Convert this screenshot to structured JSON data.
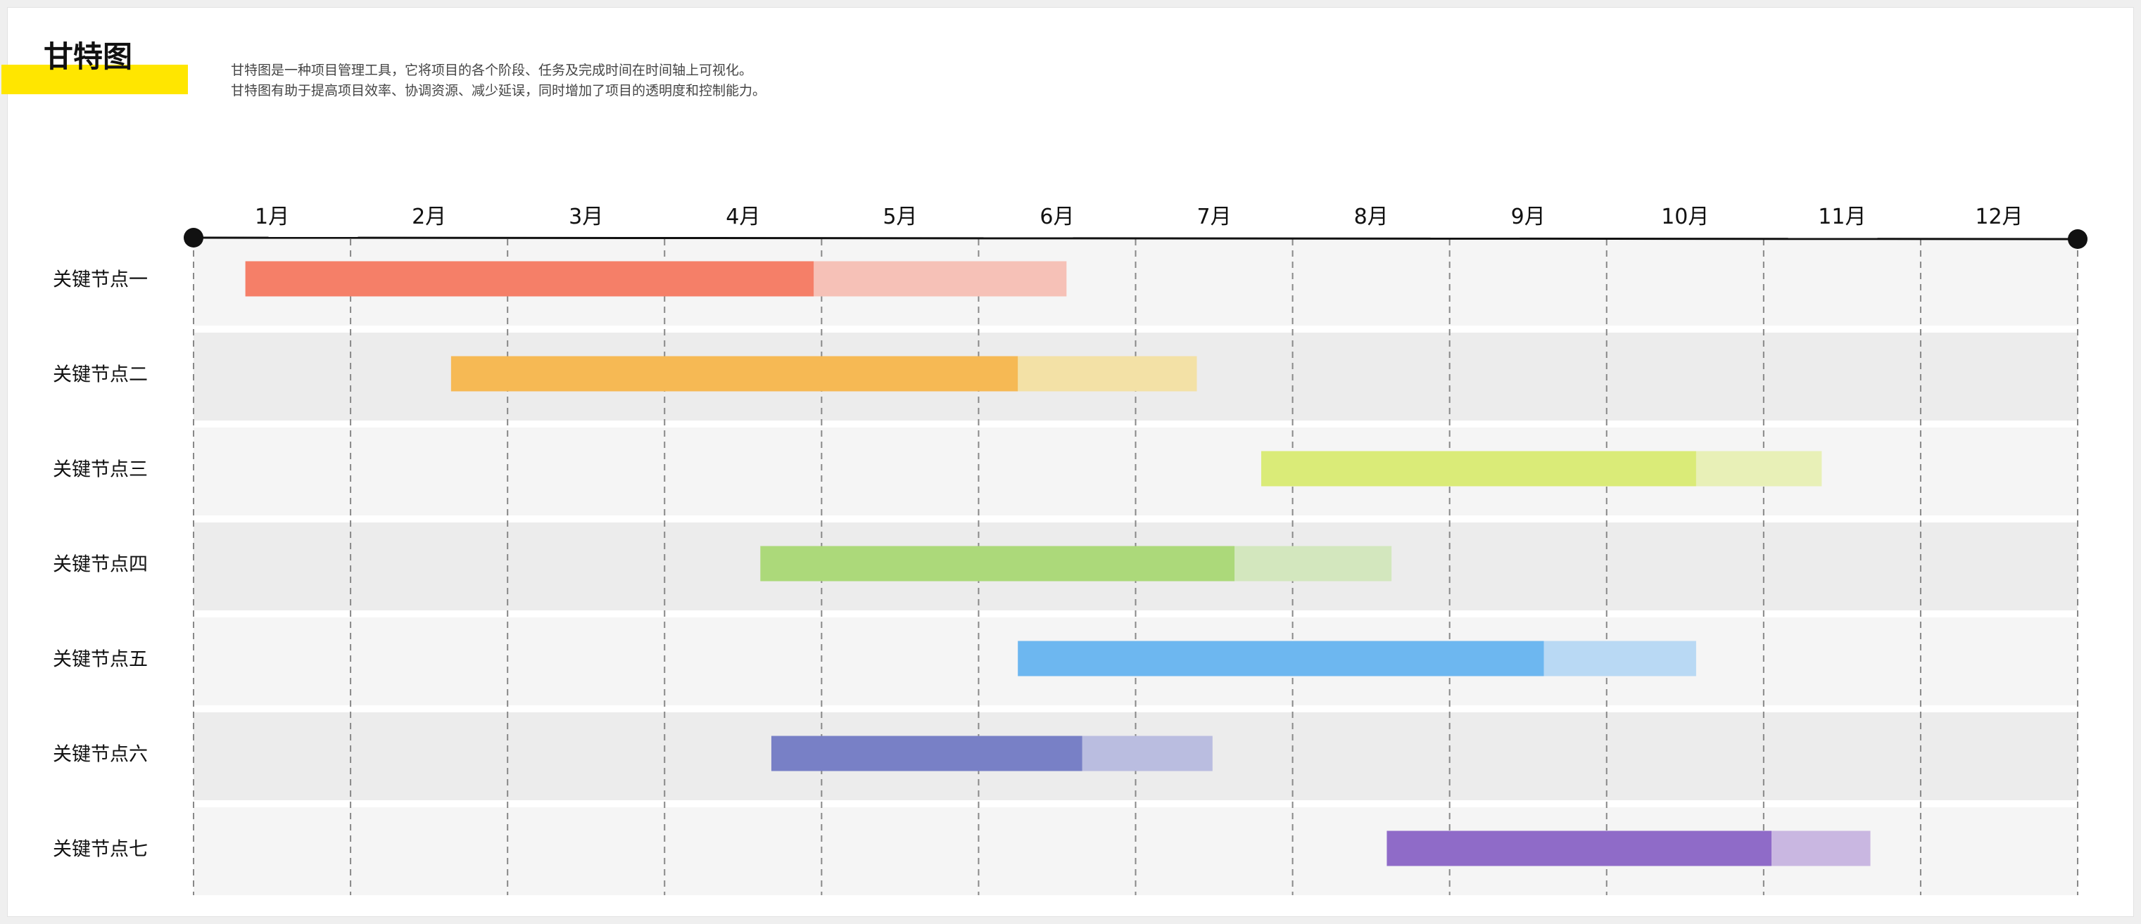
{
  "header": {
    "title": "甘特图",
    "description": [
      "甘特图是一种项目管理工具，它将项目的各个阶段、任务及完成时间在时间轴上可视化。",
      "甘特图有助于提高项目效率、协调资源、减少延误，同时增加了项目的透明度和控制能力。"
    ]
  },
  "colors": {
    "accent_bar": "#FFE600",
    "band_light": "#F5F5F5",
    "band_dark": "#ECECEC",
    "axis": "#111111",
    "gridline": "#888888"
  },
  "chart_data": {
    "type": "gantt",
    "title": "甘特图",
    "months": [
      "1月",
      "2月",
      "3月",
      "4月",
      "5月",
      "6月",
      "7月",
      "8月",
      "9月",
      "10月",
      "11月",
      "12月"
    ],
    "x_unit": "month",
    "xlim": [
      0,
      12
    ],
    "grid": "dashed vertical lines at month boundaries",
    "tasks": [
      {
        "name": "关键节点一",
        "start": 0.33,
        "progress_end": 3.95,
        "end": 5.56,
        "color": "#F57F68",
        "light_color": "#F6C1B7"
      },
      {
        "name": "关键节点二",
        "start": 1.64,
        "progress_end": 5.25,
        "end": 6.39,
        "color": "#F6B954",
        "light_color": "#F3E1A6"
      },
      {
        "name": "关键节点三",
        "start": 6.8,
        "progress_end": 9.57,
        "end": 10.37,
        "color": "#DAEB78",
        "light_color": "#E8F0B7"
      },
      {
        "name": "关键节点四",
        "start": 3.61,
        "progress_end": 6.63,
        "end": 7.63,
        "color": "#ACD97A",
        "light_color": "#D3E7BE"
      },
      {
        "name": "关键节点五",
        "start": 5.25,
        "progress_end": 8.6,
        "end": 9.57,
        "color": "#6DB7F0",
        "light_color": "#B9D9F4"
      },
      {
        "name": "关键节点六",
        "start": 3.68,
        "progress_end": 5.66,
        "end": 6.49,
        "color": "#7880C6",
        "light_color": "#BABDE0"
      },
      {
        "name": "关键节点七",
        "start": 7.6,
        "progress_end": 10.05,
        "end": 10.68,
        "color": "#8F6BC8",
        "light_color": "#C9B7E1"
      }
    ]
  }
}
